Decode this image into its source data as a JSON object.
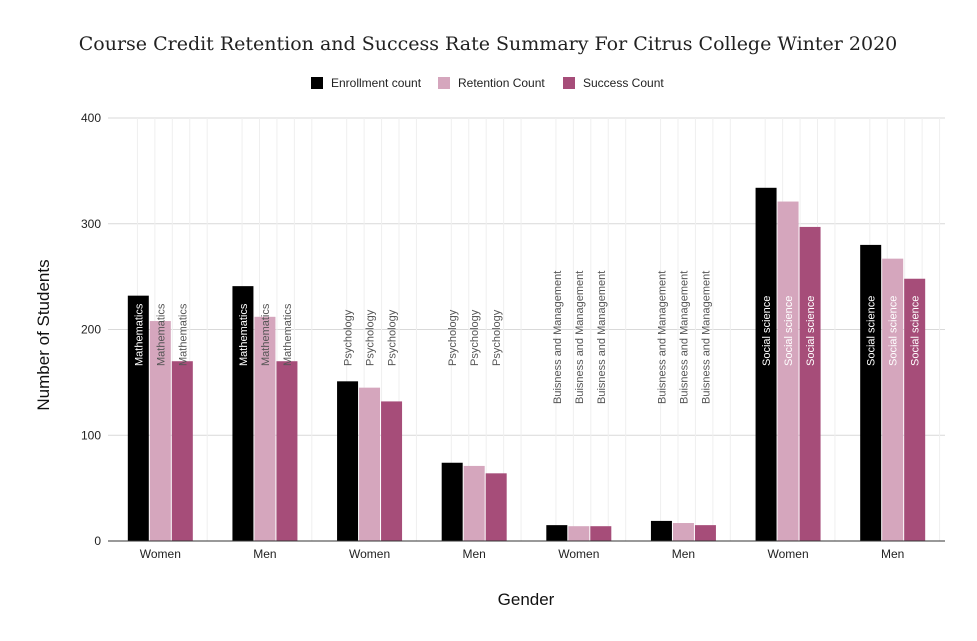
{
  "chart_data": {
    "type": "bar",
    "title": "Course Credit Retention and Success Rate Summary For Citrus College Winter 2020",
    "xlabel": "Gender",
    "ylabel": "Number of Students",
    "ylim": [
      0,
      400
    ],
    "yticks": [
      0,
      100,
      200,
      300,
      400
    ],
    "grid": true,
    "legend_position": "top",
    "categories": [
      "Women",
      "Men",
      "Women",
      "Men",
      "Women",
      "Men",
      "Women",
      "Men"
    ],
    "group_labels": [
      "Mathematics",
      "Mathematics",
      "Psychology",
      "Psychology",
      "Buisness and Management",
      "Buisness and Management",
      "Social science",
      "Social science"
    ],
    "series": [
      {
        "name": "Enrollment count",
        "color": "#000000",
        "values": [
          232,
          241,
          151,
          74,
          15,
          19,
          334,
          280
        ]
      },
      {
        "name": "Retention Count",
        "color": "#d5a6bd",
        "values": [
          208,
          212,
          145,
          71,
          14,
          17,
          321,
          267
        ]
      },
      {
        "name": "Success Count",
        "color": "#a64d79",
        "values": [
          170,
          170,
          132,
          64,
          14,
          15,
          297,
          248
        ]
      }
    ]
  }
}
